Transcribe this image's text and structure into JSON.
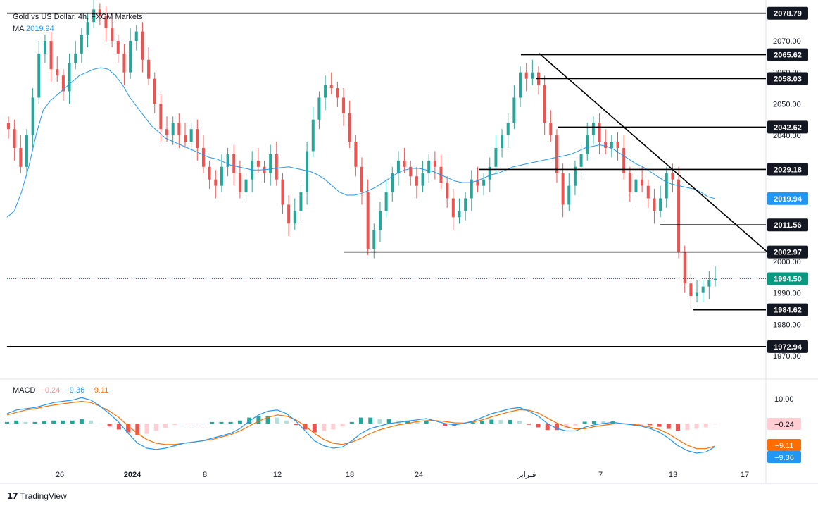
{
  "legend": {
    "symbol": "Gold vs US Dollar, 4h, FXCM Markets",
    "ma_label": "MA",
    "ma_value": "2019.94"
  },
  "macd_legend": {
    "label": "MACD",
    "histogram": "−0.24",
    "macd": "−9.36",
    "signal": "−9.11"
  },
  "footer": {
    "brand": "TradingView"
  },
  "colors": {
    "up": "#26a69a",
    "down": "#ef5350",
    "ma": "#2196f3",
    "macd_line": "#2196f3",
    "signal_line": "#ff6d00",
    "hist_pos_strong": "#26a69a",
    "hist_pos_weak": "#b2dfdb",
    "hist_neg_strong": "#ef5350",
    "hist_neg_weak": "#ffcdd2",
    "level_line": "#000000",
    "last_price": "#089981"
  },
  "chart_data": [
    {
      "type": "candlestick",
      "name": "price",
      "y_axis_ticks": [
        "2070.00",
        "2060.00",
        "2050.00",
        "2040.00",
        "2000.00",
        "1990.00",
        "1980.00",
        "1970.00"
      ],
      "ylim": [
        1966,
        2082
      ],
      "x_axis_ticks": [
        "26",
        "2024",
        "8",
        "12",
        "18",
        "24",
        "فبراير",
        "7",
        "13",
        "17"
      ],
      "horizontal_levels": [
        "2078.79",
        "2065.62",
        "2058.03",
        "2042.62",
        "2029.18",
        "2011.56",
        "2002.97",
        "1984.62",
        "1972.94"
      ],
      "ma_label": "2019.94",
      "last_price": "1994.50",
      "trendline": {
        "from_price": 2066,
        "to_price": 2003
      },
      "price_series": [
        2042,
        2036,
        2030,
        2040,
        2052,
        2066,
        2070,
        2061,
        2059,
        2054,
        2063,
        2066,
        2072,
        2076,
        2080,
        2078,
        2074,
        2070,
        2066,
        2060,
        2070,
        2073,
        2064,
        2058,
        2050,
        2042,
        2040,
        2044,
        2040,
        2038,
        2042,
        2036,
        2030,
        2026,
        2024,
        2030,
        2034,
        2028,
        2022,
        2026,
        2032,
        2030,
        2028,
        2034,
        2026,
        2018,
        2012,
        2016,
        2022,
        2035,
        2045,
        2052,
        2056,
        2055,
        2052,
        2047,
        2038,
        2030,
        2022,
        2004,
        2010,
        2016,
        2022,
        2028,
        2032,
        2030,
        2027,
        2024,
        2028,
        2032,
        2030,
        2025,
        2020,
        2014,
        2016,
        2020,
        2026,
        2024,
        2026,
        2030,
        2036,
        2040,
        2044,
        2052,
        2060,
        2058,
        2060,
        2056,
        2044,
        2040,
        2028,
        2018,
        2024,
        2030,
        2034,
        2040,
        2044,
        2038,
        2036,
        2038,
        2036,
        2028,
        2022,
        2026,
        2024,
        2020,
        2016,
        2020,
        2028,
        2026,
        2003,
        1993,
        1989,
        1990,
        1992,
        1994,
        1994.5
      ],
      "ma_series": [
        2014,
        2016,
        2022,
        2030,
        2040,
        2048,
        2051,
        2053,
        2055,
        2057,
        2059,
        2060,
        2061,
        2061.5,
        2061,
        2059,
        2056,
        2052,
        2049,
        2046,
        2043,
        2041,
        2039,
        2038,
        2037,
        2036,
        2035,
        2034,
        2033,
        2032.5,
        2031.5,
        2030.5,
        2030,
        2029.5,
        2029,
        2029,
        2029.2,
        2029.5,
        2029.8,
        2030,
        2029.5,
        2029,
        2028.5,
        2027.5,
        2026,
        2024,
        2022,
        2021,
        2021,
        2021.5,
        2022.5,
        2023.5,
        2025,
        2026.5,
        2028,
        2029,
        2029.5,
        2029.5,
        2029,
        2028.5,
        2027.5,
        2026.5,
        2025.5,
        2025,
        2025,
        2025.5,
        2026.5,
        2027.5,
        2028,
        2029,
        2030,
        2030.5,
        2031,
        2031.5,
        2032,
        2032.5,
        2033,
        2033.5,
        2034,
        2035,
        2036,
        2036.5,
        2037,
        2036.5,
        2035.5,
        2034,
        2032.5,
        2031,
        2030,
        2028.5,
        2027,
        2025.5,
        2024.5,
        2024,
        2023.5,
        2023,
        2022,
        2020.5,
        2019.94
      ]
    },
    {
      "type": "macd",
      "name": "MACD",
      "y_axis_ticks": [
        "10.00"
      ],
      "ylim": [
        -14,
        13
      ],
      "values": {
        "histogram": "−0.24",
        "signal": "−9.11",
        "macd": "−9.36"
      },
      "macd_series": [
        4,
        5.5,
        6,
        6.5,
        7.5,
        8.5,
        9,
        9.5,
        10.5,
        9.5,
        7,
        4,
        0.5,
        -4,
        -8,
        -10,
        -10.5,
        -10,
        -9,
        -8,
        -7.5,
        -7,
        -6,
        -5,
        -4,
        -2,
        1,
        3.5,
        5,
        5.5,
        4,
        1,
        -3,
        -7,
        -9,
        -10,
        -9.5,
        -7,
        -4,
        -2,
        -1,
        0,
        0.5,
        1,
        1.5,
        2,
        1,
        0,
        -0.5,
        0,
        1,
        2.5,
        4,
        5,
        6,
        6.5,
        5,
        3,
        0,
        -2,
        -3,
        -3,
        -1.5,
        -0.5,
        0,
        0.5,
        0,
        -0.5,
        -1,
        -2,
        -3.5,
        -6,
        -9,
        -11,
        -12,
        -11.5,
        -9.36
      ],
      "signal_series": [
        3.5,
        4.5,
        5.5,
        6,
        6.8,
        7.5,
        8,
        8.5,
        9,
        8.5,
        7,
        5,
        2.5,
        -1,
        -4,
        -6.5,
        -8,
        -8.5,
        -8.5,
        -8,
        -7.5,
        -7,
        -6.5,
        -5.5,
        -4.5,
        -3,
        -1,
        1,
        2.5,
        3.5,
        3,
        1.5,
        -1,
        -4,
        -6.5,
        -8,
        -8.5,
        -7.5,
        -6,
        -4,
        -2.5,
        -1.5,
        -0.5,
        0,
        0.8,
        1.2,
        1.2,
        0.8,
        0.3,
        0.2,
        0.6,
        1.5,
        2.7,
        3.8,
        4.8,
        5.6,
        5.4,
        4.3,
        2.2,
        0.2,
        -1.3,
        -2.2,
        -2.1,
        -1.3,
        -0.7,
        -0.2,
        0,
        -0.3,
        -0.7,
        -1.4,
        -2.4,
        -4.2,
        -6.6,
        -8.8,
        -10.2,
        -10.2,
        -9.11
      ]
    }
  ]
}
